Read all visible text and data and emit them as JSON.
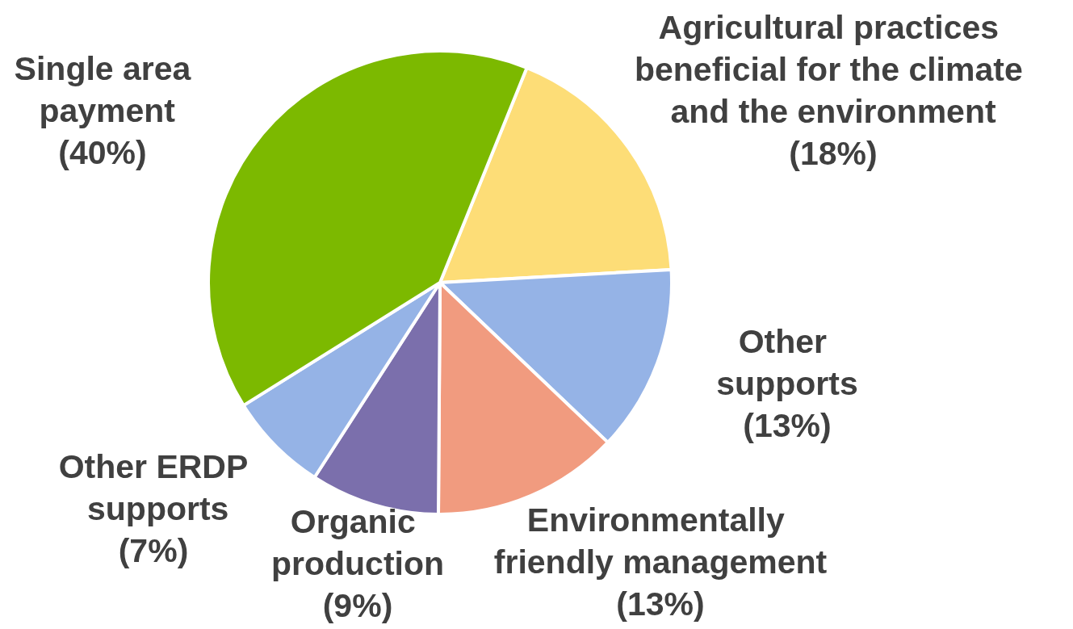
{
  "chart_data": {
    "type": "pie",
    "categories": [
      "Agricultural practices beneficial for the climate and the environment",
      "Other supports",
      "Environmentally friendly management",
      "Organic production",
      "Other ERDP supports",
      "Single area payment"
    ],
    "values": [
      18,
      13,
      13,
      9,
      7,
      40
    ],
    "colors": [
      "#fddd77",
      "#95b3e6",
      "#f19b7f",
      "#7b6fac",
      "#95b3e6",
      "#7cb900"
    ],
    "value_labels": [
      "(18%)",
      "(13%)",
      "(13%)",
      "(9%)",
      "(7%)",
      "(40%)"
    ],
    "legend": false
  }
}
